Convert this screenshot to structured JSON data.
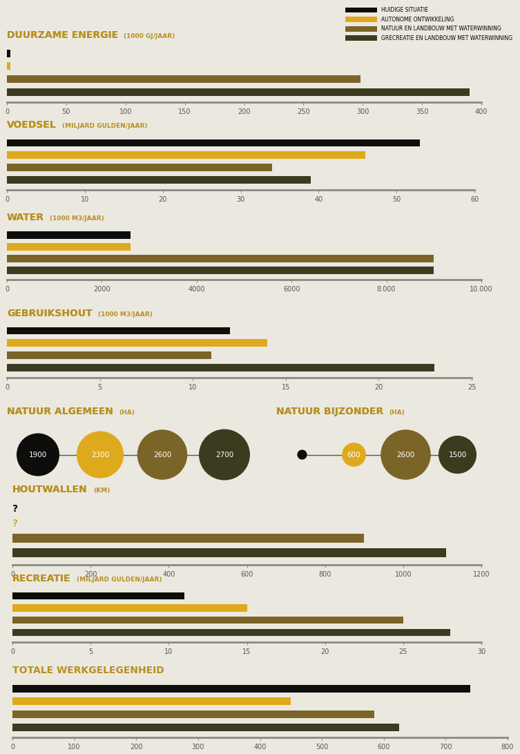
{
  "legend": {
    "position": "upper right",
    "entries": [
      {
        "name": "HUIDIGE SITUATIE",
        "color": "#0d0d0b"
      },
      {
        "name": "AUTONOME ONTWIKKELING",
        "color": "#dfa91e"
      },
      {
        "name": "NATUUR EN LANDBOUW MET WATERWINNING",
        "color": "#7b6428"
      },
      {
        "name": "GRECREATIE EN LANDBOUW MET WATERWINNING",
        "color": "#3c3b20"
      }
    ]
  },
  "chart_data": [
    {
      "type": "bar",
      "orientation": "horizontal",
      "title": "DUURZAME ENERGIE",
      "subtitle": "(1000 GJ/JAAR)",
      "values": [
        3,
        3,
        298,
        390
      ],
      "colors": [
        "#0d0d0b",
        "#dfa91e",
        "#7b6428",
        "#3c3b20"
      ],
      "xlim": [
        0,
        400
      ],
      "xticks": [
        0,
        50,
        100,
        150,
        200,
        250,
        300,
        350,
        400
      ],
      "tick_labels": "x"
    },
    {
      "type": "bar",
      "orientation": "horizontal",
      "title": "VOEDSEL",
      "subtitle": "(MILJARD GULDEN/JAAR)",
      "values": [
        53,
        46,
        34,
        39
      ],
      "colors": [
        "#0d0d0b",
        "#dfa91e",
        "#7b6428",
        "#3c3b20"
      ],
      "xlim": [
        0,
        60
      ],
      "xticks": [
        0,
        10,
        20,
        30,
        40,
        50,
        60
      ],
      "tick_labels": "x"
    },
    {
      "type": "bar",
      "orientation": "horizontal",
      "title": "WATER",
      "subtitle": "(1000 M3/JAAR)",
      "values": [
        2600,
        2600,
        9000,
        9000
      ],
      "colors": [
        "#0d0d0b",
        "#dfa91e",
        "#7b6428",
        "#3c3b20"
      ],
      "xlim": [
        0,
        10000
      ],
      "xticks": [
        0,
        2000,
        4000,
        6000,
        {
          "value": 8000,
          "label": "8.000"
        },
        {
          "value": 10000,
          "label": "10.000"
        }
      ],
      "tick_labels": "x"
    },
    {
      "type": "bar",
      "orientation": "horizontal",
      "title": "GEBRUIKSHOUT",
      "subtitle": "(1000 M3/JAAR)",
      "values": [
        12,
        14,
        11,
        23
      ],
      "colors": [
        "#0d0d0b",
        "#dfa91e",
        "#7b6428",
        "#3c3b20"
      ],
      "xlim": [
        0,
        25
      ],
      "xticks": [
        0,
        5,
        10,
        15,
        20,
        25
      ],
      "tick_labels": "x"
    },
    {
      "type": "bubble",
      "title": "NATUUR ALGEMEEN",
      "subtitle": "(HA)",
      "values": [
        1900,
        2300,
        2600,
        2700
      ],
      "colors": [
        "#0d0d0b",
        "#dfa91e",
        "#7b6428",
        "#3c3b20"
      ],
      "data_labels": true,
      "tick_labels": false
    },
    {
      "type": "bubble",
      "title": "NATUUR BIJZONDER",
      "subtitle": "(HA)",
      "values": [
        100,
        600,
        2600,
        1500
      ],
      "value_labels": [
        null,
        "600",
        "2600",
        "1500"
      ],
      "colors": [
        "#0d0d0b",
        "#dfa91e",
        "#7b6428",
        "#3c3b20"
      ],
      "tick_labels": false
    },
    {
      "type": "bar",
      "orientation": "horizontal",
      "title": "HOUTWALLEN",
      "subtitle": "(KM)",
      "values": [
        null,
        null,
        900,
        1110
      ],
      "value_labels": [
        "?",
        "?",
        null,
        null
      ],
      "colors": [
        "#0d0d0b",
        "#dfa91e",
        "#7b6428",
        "#3c3b20"
      ],
      "xlim": [
        0,
        1200
      ],
      "xticks": [
        0,
        200,
        400,
        600,
        800,
        1000,
        1200
      ],
      "tick_labels": "x"
    },
    {
      "type": "bar",
      "orientation": "horizontal",
      "title": "RECREATIE",
      "subtitle": "(MILJARD GULDEN/JAAR)",
      "values": [
        11,
        15,
        25,
        28
      ],
      "colors": [
        "#0d0d0b",
        "#dfa91e",
        "#7b6428",
        "#3c3b20"
      ],
      "xlim": [
        0,
        30
      ],
      "xticks": [
        0,
        5,
        10,
        15,
        20,
        25,
        30
      ],
      "tick_labels": "x"
    },
    {
      "type": "bar",
      "orientation": "horizontal",
      "title": "TOTALE WERKGELEGENHEID",
      "values": [
        740,
        450,
        585,
        625
      ],
      "colors": [
        "#0d0d0b",
        "#dfa91e",
        "#7b6428",
        "#3c3b20"
      ],
      "xlim": [
        0,
        800
      ],
      "xticks": [
        0,
        100,
        200,
        300,
        400,
        500,
        600,
        700,
        800
      ],
      "tick_labels": "x"
    }
  ]
}
